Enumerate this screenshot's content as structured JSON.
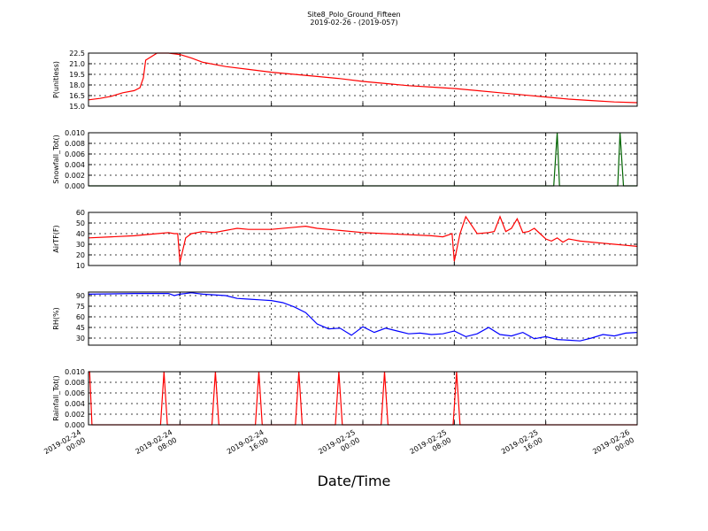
{
  "title": "Site8_Polo_Ground_Fifteen",
  "subtitle": "2019-02-26 - (2019-057)",
  "xlabel": "Date/Time",
  "x_ticks": [
    "2019-02-24\n00:00",
    "2019-02-24\n08:00",
    "2019-02-24\n16:00",
    "2019-02-25\n00:00",
    "2019-02-25\n08:00",
    "2019-02-25\n16:00",
    "2019-02-26\n00:00"
  ],
  "chart_data": [
    {
      "type": "line",
      "ylabel": "P(unitless)",
      "ylim": [
        15.0,
        22.5
      ],
      "yticks": [
        "15.0",
        "16.5",
        "18.0",
        "19.5",
        "21.0",
        "22.5"
      ],
      "grid": true,
      "color": "#ff0000",
      "x_hours": [
        0,
        1,
        2,
        3,
        4,
        4.5,
        4.8,
        5,
        6,
        7,
        8,
        9,
        10,
        12,
        14,
        16,
        18,
        20,
        22,
        24,
        26,
        28,
        30,
        32,
        34,
        36,
        38,
        40,
        42,
        44,
        46,
        48
      ],
      "y": [
        15.9,
        16.1,
        16.4,
        16.9,
        17.2,
        17.6,
        19.0,
        21.5,
        22.5,
        22.5,
        22.3,
        21.8,
        21.2,
        20.6,
        20.2,
        19.8,
        19.5,
        19.2,
        18.9,
        18.5,
        18.2,
        17.9,
        17.7,
        17.5,
        17.2,
        16.9,
        16.6,
        16.3,
        16.0,
        15.8,
        15.6,
        15.5
      ]
    },
    {
      "type": "line",
      "ylabel": "Snowfall_Tot()",
      "ylim": [
        0.0,
        0.01
      ],
      "yticks": [
        "0.000",
        "0.002",
        "0.004",
        "0.006",
        "0.008",
        "0.010"
      ],
      "grid": true,
      "color": "#006400",
      "x_hours": [
        0,
        40.7,
        41.0,
        41.2,
        46.3,
        46.5,
        46.8,
        48
      ],
      "y": [
        0,
        0,
        0.01,
        0,
        0,
        0.01,
        0,
        0
      ]
    },
    {
      "type": "line",
      "ylabel": "AirTF(F)",
      "ylim": [
        10,
        60
      ],
      "yticks": [
        "10",
        "20",
        "30",
        "40",
        "50",
        "60"
      ],
      "grid": true,
      "color": "#ff0000",
      "x_hours": [
        0,
        2,
        4,
        6,
        7,
        7.5,
        7.8,
        8,
        8.5,
        9,
        9.5,
        10,
        11,
        12,
        12.5,
        13,
        14,
        16,
        18,
        19,
        20,
        22,
        24,
        26,
        28,
        30,
        31,
        31.8,
        32,
        32.5,
        33,
        34,
        35,
        35.5,
        36,
        36.5,
        37,
        37.5,
        38,
        38.5,
        39,
        39.5,
        40,
        40.5,
        41,
        41.5,
        42,
        42.5,
        43,
        44,
        45,
        46,
        47,
        48
      ],
      "y": [
        36,
        37,
        38,
        40,
        41,
        40,
        40,
        13,
        36,
        40,
        41,
        42,
        41,
        43,
        44,
        45,
        44,
        44,
        46,
        47,
        45,
        43,
        41,
        40,
        39,
        38,
        37,
        40,
        14,
        40,
        56,
        40,
        41,
        42,
        56,
        42,
        45,
        54,
        41,
        42,
        45,
        40,
        35,
        33,
        36,
        32,
        35,
        34,
        33,
        32,
        31,
        30,
        29,
        28
      ]
    },
    {
      "type": "line",
      "ylabel": "RH(%)",
      "ylim": [
        20,
        95
      ],
      "yticks": [
        "30",
        "45",
        "60",
        "75",
        "90"
      ],
      "grid": true,
      "color": "#0000ff",
      "x_hours": [
        0,
        4,
        7,
        7.5,
        8,
        9,
        10,
        12,
        13,
        14,
        15,
        16,
        17,
        18,
        19,
        20,
        21,
        22,
        23,
        24,
        25,
        26,
        27,
        28,
        29,
        30,
        31,
        32,
        33,
        34,
        35,
        36,
        37,
        38,
        39,
        40,
        41,
        42,
        43,
        44,
        45,
        46,
        47,
        48
      ],
      "y": [
        92,
        93,
        93,
        90,
        92,
        94,
        92,
        90,
        86,
        85,
        84,
        83,
        80,
        74,
        66,
        50,
        43,
        44,
        34,
        46,
        38,
        44,
        40,
        36,
        37,
        35,
        36,
        40,
        32,
        36,
        45,
        35,
        33,
        38,
        29,
        32,
        28,
        27,
        26,
        30,
        35,
        33,
        37,
        38
      ]
    },
    {
      "type": "line",
      "ylabel": "Rainfall_Tot()",
      "ylim": [
        0.0,
        0.01
      ],
      "yticks": [
        "0.000",
        "0.002",
        "0.004",
        "0.006",
        "0.008",
        "0.010"
      ],
      "grid": true,
      "color": "#ff0000",
      "x_hours": [
        0,
        0.1,
        0.3,
        6.3,
        6.6,
        6.9,
        10.8,
        11.1,
        11.4,
        14.6,
        14.9,
        15.2,
        18.1,
        18.4,
        18.7,
        21.6,
        21.9,
        22.2,
        25.6,
        25.9,
        26.2,
        31.9,
        32.2,
        32.5,
        48
      ],
      "y": [
        0.01,
        0.01,
        0,
        0,
        0.01,
        0,
        0,
        0.01,
        0,
        0,
        0.01,
        0,
        0,
        0.01,
        0,
        0,
        0.01,
        0,
        0,
        0.01,
        0,
        0,
        0.01,
        0,
        0
      ]
    }
  ]
}
